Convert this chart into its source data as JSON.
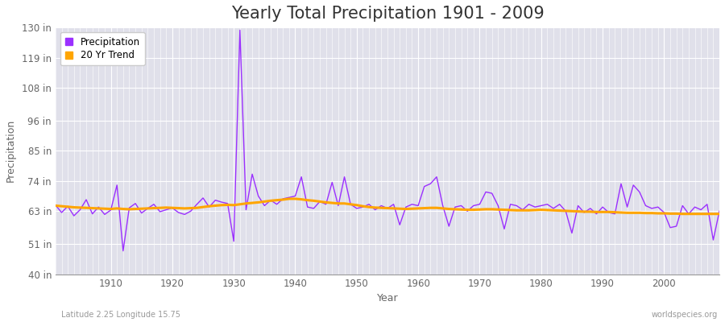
{
  "title": "Yearly Total Precipitation 1901 - 2009",
  "xlabel": "Year",
  "ylabel": "Precipitation",
  "subtitle_left": "Latitude 2.25 Longitude 15.75",
  "subtitle_right": "worldspecies.org",
  "years": [
    1901,
    1902,
    1903,
    1904,
    1905,
    1906,
    1907,
    1908,
    1909,
    1910,
    1911,
    1912,
    1913,
    1914,
    1915,
    1916,
    1917,
    1918,
    1919,
    1920,
    1921,
    1922,
    1923,
    1924,
    1925,
    1926,
    1927,
    1928,
    1929,
    1930,
    1931,
    1932,
    1933,
    1934,
    1935,
    1936,
    1937,
    1938,
    1939,
    1940,
    1941,
    1942,
    1943,
    1944,
    1945,
    1946,
    1947,
    1948,
    1949,
    1950,
    1951,
    1952,
    1953,
    1954,
    1955,
    1956,
    1957,
    1958,
    1959,
    1960,
    1961,
    1962,
    1963,
    1964,
    1965,
    1966,
    1967,
    1968,
    1969,
    1970,
    1971,
    1972,
    1973,
    1974,
    1975,
    1976,
    1977,
    1978,
    1979,
    1980,
    1981,
    1982,
    1983,
    1984,
    1985,
    1986,
    1987,
    1988,
    1989,
    1990,
    1991,
    1992,
    1993,
    1994,
    1995,
    1996,
    1997,
    1998,
    1999,
    2000,
    2001,
    2002,
    2003,
    2004,
    2005,
    2006,
    2007,
    2008,
    2009
  ],
  "precipitation": [
    65.2,
    62.5,
    64.8,
    61.3,
    63.5,
    67.2,
    62.0,
    64.5,
    61.8,
    63.4,
    72.5,
    48.5,
    64.2,
    65.8,
    62.3,
    64.0,
    65.5,
    62.8,
    63.5,
    64.2,
    62.5,
    61.8,
    63.0,
    65.5,
    67.8,
    64.5,
    67.0,
    66.3,
    65.8,
    52.0,
    129.0,
    63.5,
    76.5,
    68.5,
    65.0,
    67.0,
    65.5,
    67.5,
    68.0,
    68.5,
    75.5,
    64.5,
    64.0,
    66.5,
    65.5,
    73.5,
    65.0,
    75.5,
    65.5,
    64.0,
    64.5,
    65.5,
    63.5,
    65.0,
    64.0,
    65.5,
    58.0,
    64.5,
    65.5,
    65.0,
    72.0,
    73.0,
    75.5,
    65.0,
    57.5,
    64.5,
    65.0,
    63.0,
    65.0,
    65.5,
    70.0,
    69.5,
    65.0,
    56.5,
    65.5,
    65.0,
    63.5,
    65.5,
    64.5,
    65.0,
    65.5,
    64.0,
    65.5,
    63.0,
    55.0,
    65.0,
    62.5,
    64.0,
    62.0,
    64.5,
    62.5,
    62.0,
    73.0,
    64.5,
    72.5,
    70.0,
    65.0,
    64.0,
    64.5,
    62.5,
    57.0,
    57.5,
    65.0,
    62.0,
    64.5,
    63.5,
    65.5,
    52.5,
    63.0
  ],
  "trend": [
    65.0,
    64.8,
    64.6,
    64.4,
    64.3,
    64.2,
    64.1,
    64.0,
    63.9,
    63.8,
    64.0,
    63.8,
    63.7,
    63.8,
    63.9,
    64.0,
    64.1,
    64.2,
    64.3,
    64.2,
    64.1,
    64.0,
    64.1,
    64.2,
    64.5,
    64.8,
    65.0,
    65.2,
    65.3,
    65.2,
    65.5,
    65.8,
    66.0,
    66.2,
    66.5,
    66.8,
    67.0,
    67.2,
    67.5,
    67.5,
    67.3,
    67.0,
    66.8,
    66.5,
    66.2,
    66.0,
    65.8,
    65.8,
    65.5,
    65.2,
    64.8,
    64.5,
    64.3,
    64.2,
    64.1,
    64.0,
    63.9,
    63.8,
    63.9,
    64.0,
    64.1,
    64.2,
    64.2,
    64.0,
    63.8,
    63.7,
    63.6,
    63.5,
    63.5,
    63.6,
    63.7,
    63.7,
    63.6,
    63.5,
    63.4,
    63.3,
    63.3,
    63.3,
    63.4,
    63.5,
    63.4,
    63.3,
    63.2,
    63.1,
    63.0,
    62.9,
    62.8,
    62.8,
    62.7,
    62.7,
    62.7,
    62.6,
    62.5,
    62.4,
    62.4,
    62.4,
    62.3,
    62.3,
    62.2,
    62.2,
    62.1,
    62.1,
    62.0,
    62.0,
    62.0,
    62.0,
    62.0,
    62.0,
    62.0
  ],
  "yticks": [
    40,
    51,
    63,
    74,
    85,
    96,
    108,
    119,
    130
  ],
  "ytick_labels": [
    "40 in",
    "51 in",
    "63 in",
    "74 in",
    "85 in",
    "96 in",
    "108 in",
    "119 in",
    "130 in"
  ],
  "xticks": [
    1910,
    1920,
    1930,
    1940,
    1950,
    1960,
    1970,
    1980,
    1990,
    2000
  ],
  "ylim": [
    40,
    130
  ],
  "xlim": [
    1901,
    2009
  ],
  "precip_color": "#9B30FF",
  "trend_color": "#FFA500",
  "bg_color": "#FFFFFF",
  "plot_bg_color": "#E0E0EA",
  "grid_color": "#FFFFFF",
  "title_fontsize": 15,
  "axis_fontsize": 9,
  "tick_fontsize": 8.5
}
